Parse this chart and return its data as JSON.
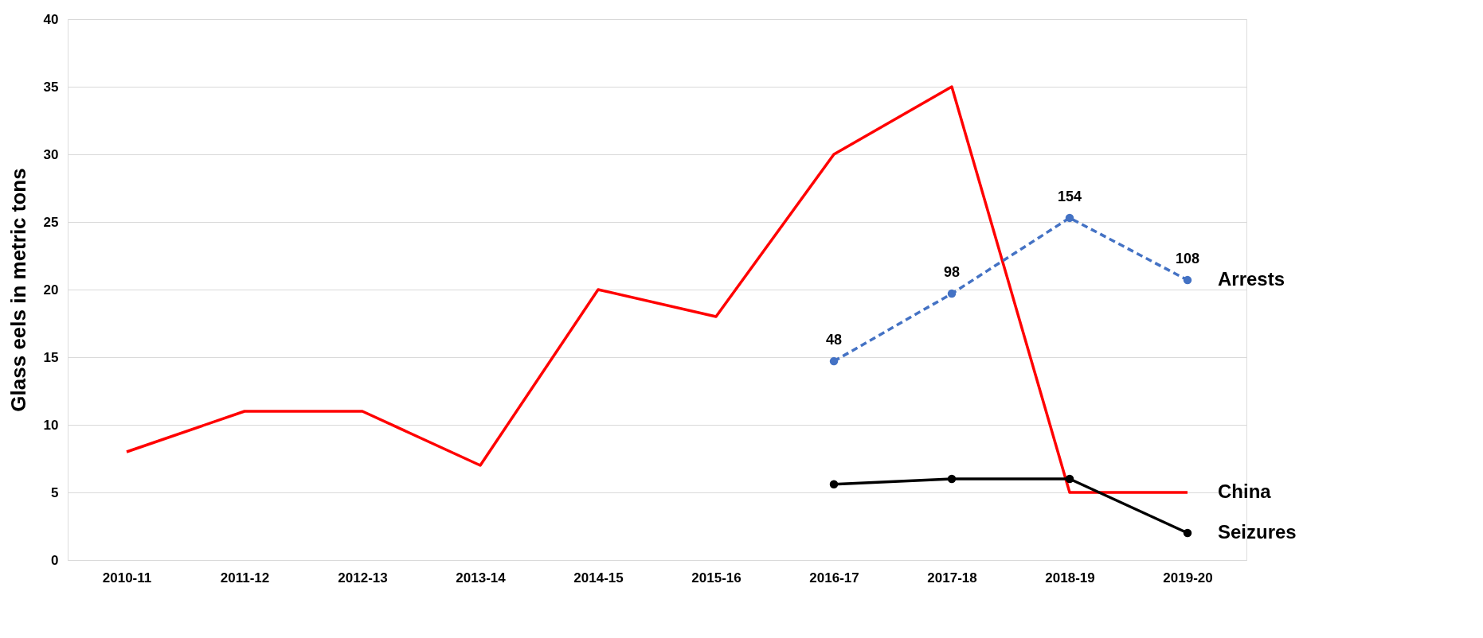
{
  "chart_data": {
    "type": "line",
    "ylabel": "Glass eels in metric tons",
    "categories": [
      "2010-11",
      "2011-12",
      "2012-13",
      "2013-14",
      "2014-15",
      "2015-16",
      "2016-17",
      "2017-18",
      "2018-19",
      "2019-20"
    ],
    "series": [
      {
        "name": "China",
        "color": "#ff0000",
        "marker": "none",
        "line_style": "solid",
        "values": [
          8,
          11,
          11,
          7,
          20,
          18,
          30,
          35,
          5,
          5
        ]
      },
      {
        "name": "Arrests",
        "axis": "y2",
        "color": "#4472c4",
        "marker": "circle",
        "line_style": "dashed",
        "values": [
          null,
          null,
          null,
          null,
          null,
          null,
          48,
          98,
          154,
          108
        ],
        "value_labels": [
          null,
          null,
          null,
          null,
          null,
          null,
          "48",
          "98",
          "154",
          "108"
        ]
      },
      {
        "name": "Seizures",
        "color": "#000000",
        "marker": "circle",
        "line_style": "solid",
        "values": [
          null,
          null,
          null,
          null,
          null,
          null,
          5.6,
          6,
          6,
          2
        ]
      }
    ],
    "ylim": [
      0,
      40
    ],
    "yticks": [
      0,
      5,
      10,
      15,
      20,
      25,
      30,
      35,
      40
    ],
    "y2lim": [
      -99,
      301
    ],
    "grid": "y",
    "legend": false
  }
}
